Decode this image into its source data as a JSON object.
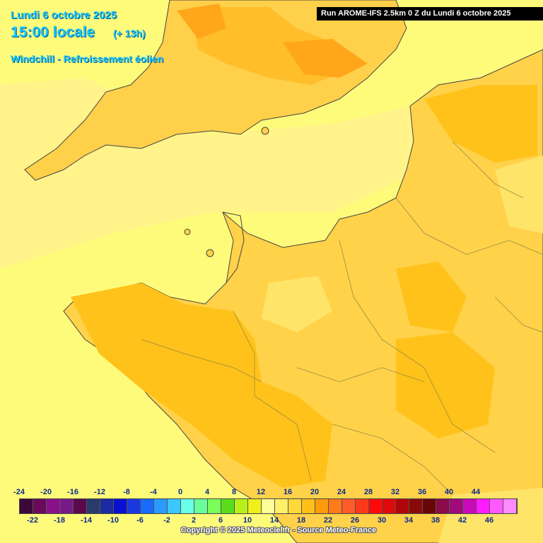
{
  "header": {
    "date": "Lundi 6 octobre 2025",
    "time": "15:00 locale",
    "lead": "(+ 13h)",
    "parameter": "Windchill - Refroissement éolien"
  },
  "run_banner": "Run AROME-IFS 2.5km 0 Z du Lundi 6 octobre 2025",
  "legend": {
    "top_labels": [
      "-24",
      "-20",
      "-16",
      "-12",
      "-8",
      "-4",
      "0",
      "4",
      "8",
      "12",
      "16",
      "20",
      "24",
      "28",
      "32",
      "36",
      "40",
      "44"
    ],
    "bottom_labels": [
      "-22",
      "-18",
      "-14",
      "-10",
      "-6",
      "-2",
      "2",
      "6",
      "10",
      "14",
      "18",
      "22",
      "26",
      "30",
      "34",
      "38",
      "42",
      "46"
    ],
    "colors": [
      "#3b0a3b",
      "#6a0a5a",
      "#8a108a",
      "#7a1a8a",
      "#5a0a4a",
      "#2a3a6a",
      "#1a2aa0",
      "#0a10d0",
      "#1a3ae0",
      "#1a6aff",
      "#2a9aff",
      "#3ac8ff",
      "#6affe8",
      "#6aff9a",
      "#7aff5a",
      "#5adc1a",
      "#b8f01a",
      "#f0f01a",
      "#ffff9a",
      "#fff06a",
      "#ffd83a",
      "#ffc01a",
      "#ff9a0a",
      "#ff7a1a",
      "#ff5a2a",
      "#ff3a1a",
      "#ff0a0a",
      "#e00a0a",
      "#b0060a",
      "#8a0a0a",
      "#6a0606",
      "#8a0a4a",
      "#a00a7a",
      "#c80ab8",
      "#ff1aff",
      "#ff5aff",
      "#ff8aff"
    ]
  },
  "copyright": "Copyright © 2025 Meteociel.fr - Source Meteo-France"
}
